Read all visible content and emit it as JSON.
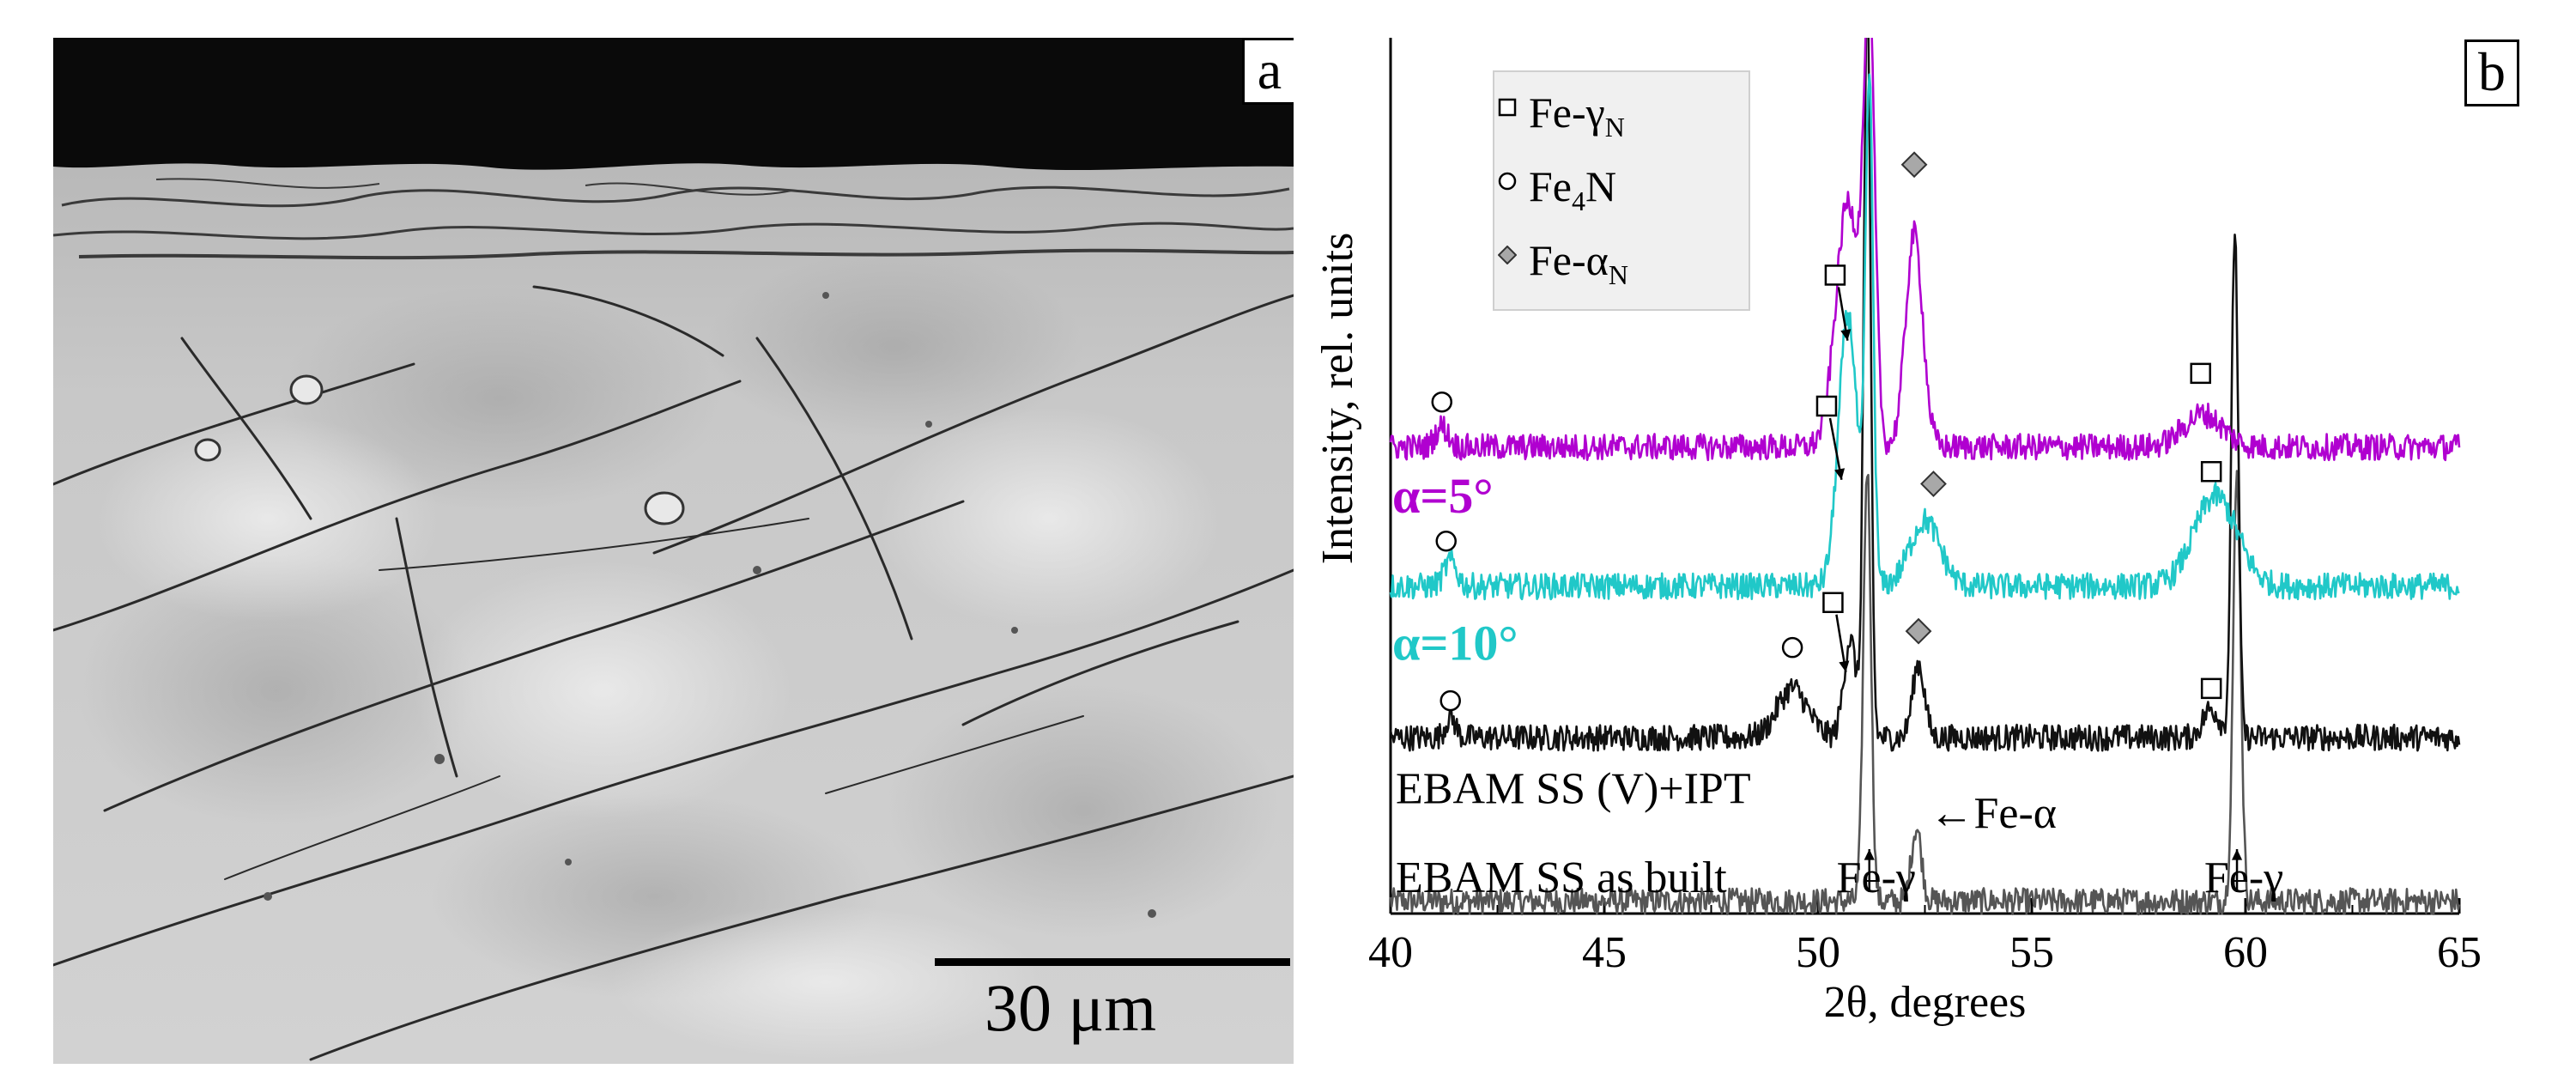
{
  "panel_a": {
    "label": "a",
    "scale_bar": "30 μm"
  },
  "panel_b": {
    "label": "b",
    "legend": [
      {
        "symbol": "square",
        "base": "Fe-γ",
        "sub": "N",
        "text": "Fe-γN"
      },
      {
        "symbol": "circle",
        "base": "Fe",
        "sub": "4",
        "tail": "N",
        "text": "Fe4N"
      },
      {
        "symbol": "diamond",
        "base": "Fe-α",
        "sub": "N",
        "text": "Fe-αN"
      }
    ],
    "annotations": {
      "alpha5": "α=5°",
      "alpha10": "α=10°",
      "treated": "EBAM SS (V)+IPT",
      "asbuilt": "EBAM SS as built",
      "fe_gamma_1": "Fe-γ",
      "fe_gamma_2": "Fe-γ",
      "fe_alpha": "←Fe-α"
    },
    "colors": {
      "alpha5": "#b000d0",
      "alpha10": "#20c8c8",
      "treated": "#111111",
      "asbuilt": "#555555"
    }
  },
  "chart_data": {
    "type": "line",
    "title": "",
    "xlabel": "2θ, degrees",
    "ylabel": "Intensity, rel. units",
    "xlim": [
      40,
      65
    ],
    "xticks": [
      40,
      45,
      50,
      55,
      60,
      65
    ],
    "yticks": [],
    "series": [
      {
        "name": "EBAM SS as built",
        "color": "#555555",
        "baseline": 0.0,
        "peaks": [
          {
            "x": 51.15,
            "height": 5.3,
            "width": 0.09
          },
          {
            "x": 52.3,
            "height": 0.9,
            "width": 0.12
          },
          {
            "x": 59.8,
            "height": 5.2,
            "width": 0.09
          }
        ]
      },
      {
        "name": "EBAM SS (V)+IPT",
        "color": "#111111",
        "baseline": 2.0,
        "peaks": [
          {
            "x": 41.4,
            "height": 0.25,
            "width": 0.12
          },
          {
            "x": 49.4,
            "height": 0.6,
            "width": 0.35
          },
          {
            "x": 50.75,
            "height": 1.2,
            "width": 0.15
          },
          {
            "x": 51.15,
            "height": 9.0,
            "width": 0.08
          },
          {
            "x": 52.35,
            "height": 0.9,
            "width": 0.14
          },
          {
            "x": 59.2,
            "height": 0.35,
            "width": 0.2
          },
          {
            "x": 59.75,
            "height": 6.2,
            "width": 0.08
          }
        ]
      },
      {
        "name": "α=10°",
        "color": "#20c8c8",
        "baseline": 3.85,
        "peaks": [
          {
            "x": 41.4,
            "height": 0.3,
            "width": 0.15
          },
          {
            "x": 50.7,
            "height": 3.3,
            "width": 0.22
          },
          {
            "x": 51.2,
            "height": 6.0,
            "width": 0.09
          },
          {
            "x": 52.5,
            "height": 0.8,
            "width": 0.35
          },
          {
            "x": 59.3,
            "height": 1.1,
            "width": 0.5
          }
        ]
      },
      {
        "name": "α=5°",
        "color": "#b000d0",
        "baseline": 5.55,
        "peaks": [
          {
            "x": 41.2,
            "height": 0.25,
            "width": 0.15
          },
          {
            "x": 50.7,
            "height": 3.0,
            "width": 0.28
          },
          {
            "x": 51.2,
            "height": 5.0,
            "width": 0.13
          },
          {
            "x": 52.25,
            "height": 2.6,
            "width": 0.2
          },
          {
            "x": 59.0,
            "height": 0.4,
            "width": 0.45
          }
        ]
      }
    ],
    "markers": [
      {
        "series": "α=5°",
        "symbol": "circle",
        "x": 41.2,
        "y": 6.25
      },
      {
        "series": "α=5°",
        "symbol": "square",
        "x": 50.4,
        "y": 7.8
      },
      {
        "series": "α=5°",
        "symbol": "diamond",
        "x": 52.25,
        "y": 9.15
      },
      {
        "series": "α=5°",
        "symbol": "square",
        "x": 58.95,
        "y": 6.6
      },
      {
        "series": "α=10°",
        "symbol": "circle",
        "x": 41.3,
        "y": 4.55
      },
      {
        "series": "α=10°",
        "symbol": "square",
        "x": 50.2,
        "y": 6.2
      },
      {
        "series": "α=10°",
        "symbol": "diamond",
        "x": 52.7,
        "y": 5.25
      },
      {
        "series": "α=10°",
        "symbol": "square",
        "x": 59.2,
        "y": 5.4
      },
      {
        "series": "EBAM SS (V)+IPT",
        "symbol": "circle",
        "x": 41.4,
        "y": 2.6
      },
      {
        "series": "EBAM SS (V)+IPT",
        "symbol": "circle",
        "x": 49.4,
        "y": 3.25
      },
      {
        "series": "EBAM SS (V)+IPT",
        "symbol": "square",
        "x": 50.35,
        "y": 3.8
      },
      {
        "series": "EBAM SS (V)+IPT",
        "symbol": "diamond",
        "x": 52.35,
        "y": 3.45
      },
      {
        "series": "EBAM SS (V)+IPT",
        "symbol": "square",
        "x": 59.2,
        "y": 2.75
      }
    ]
  }
}
